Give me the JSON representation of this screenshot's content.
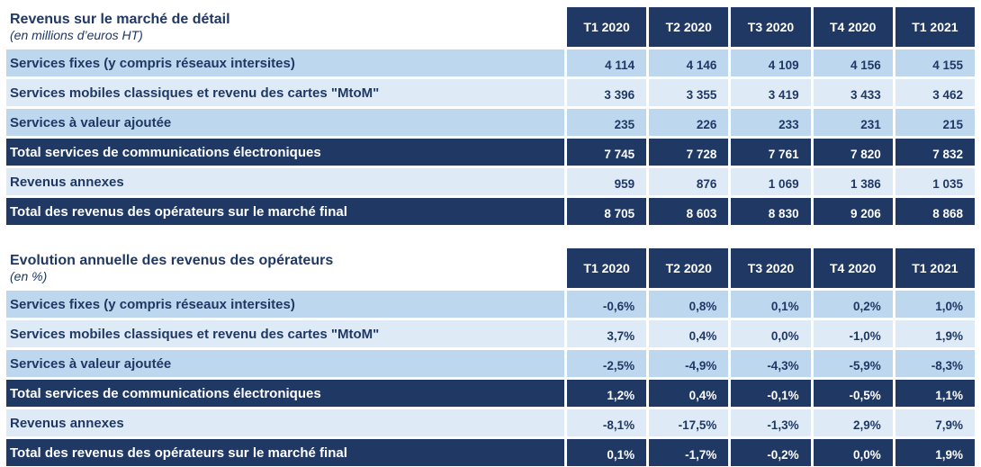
{
  "colors": {
    "navy": "#1F3864",
    "light_blue": "#BDD7EE",
    "lighter_blue": "#DEEBF7",
    "background": "#FFFFFF",
    "total_text": "#FFFFFF"
  },
  "chart_data": [
    {
      "type": "table",
      "title": "Revenus sur le marché de détail",
      "subtitle": "(en millions d’euros HT)",
      "unit": "millions d'euros HT",
      "columns": [
        "T1 2020",
        "T2 2020",
        "T3 2020",
        "T4 2020",
        "T1 2021"
      ],
      "rows": [
        {
          "label": "Services fixes (y compris réseaux intersites)",
          "style": "light",
          "values": [
            "4 114",
            "4 146",
            "4 109",
            "4 156",
            "4 155"
          ]
        },
        {
          "label": "Services mobiles classiques et revenu des cartes \"MtoM\"",
          "style": "lighter",
          "values": [
            "3 396",
            "3 355",
            "3 419",
            "3 433",
            "3 462"
          ]
        },
        {
          "label": "Services à valeur ajoutée",
          "style": "light",
          "values": [
            "235",
            "226",
            "233",
            "231",
            "215"
          ]
        },
        {
          "label": "Total services de communications électroniques",
          "style": "total",
          "values": [
            "7 745",
            "7 728",
            "7 761",
            "7 820",
            "7 832"
          ]
        },
        {
          "label": "Revenus annexes",
          "style": "lighter",
          "values": [
            "959",
            "876",
            "1 069",
            "1 386",
            "1 035"
          ]
        },
        {
          "label": "Total des revenus des opérateurs sur le marché final",
          "style": "total",
          "values": [
            "8 705",
            "8 603",
            "8 830",
            "9 206",
            "8 868"
          ]
        }
      ]
    },
    {
      "type": "table",
      "title": "Evolution annuelle des revenus des opérateurs",
      "subtitle": "(en %)",
      "unit": "%",
      "columns": [
        "T1 2020",
        "T2 2020",
        "T3 2020",
        "T4 2020",
        "T1 2021"
      ],
      "rows": [
        {
          "label": "Services fixes (y compris réseaux intersites)",
          "style": "light",
          "values": [
            "-0,6%",
            "0,8%",
            "0,1%",
            "0,2%",
            "1,0%"
          ]
        },
        {
          "label": "Services mobiles classiques et revenu des cartes \"MtoM\"",
          "style": "lighter",
          "values": [
            "3,7%",
            "0,4%",
            "0,0%",
            "-1,0%",
            "1,9%"
          ]
        },
        {
          "label": "Services à valeur ajoutée",
          "style": "light",
          "values": [
            "-2,5%",
            "-4,9%",
            "-4,3%",
            "-5,9%",
            "-8,3%"
          ]
        },
        {
          "label": "Total services de communications électroniques",
          "style": "total",
          "values": [
            "1,2%",
            "0,4%",
            "-0,1%",
            "-0,5%",
            "1,1%"
          ]
        },
        {
          "label": "Revenus annexes",
          "style": "lighter",
          "values": [
            "-8,1%",
            "-17,5%",
            "-1,3%",
            "2,9%",
            "7,9%"
          ]
        },
        {
          "label": "Total des revenus des opérateurs sur le marché final",
          "style": "total",
          "values": [
            "0,1%",
            "-1,7%",
            "-0,2%",
            "0,0%",
            "1,9%"
          ]
        }
      ]
    }
  ]
}
